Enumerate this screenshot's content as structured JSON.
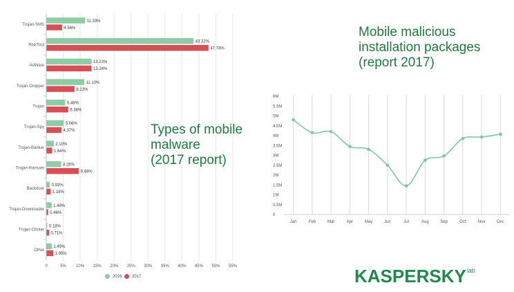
{
  "chart_data": [
    {
      "type": "bar",
      "orientation": "horizontal",
      "title": "",
      "categories": [
        "Trojan-SMS",
        "RiskTool",
        "AdWare",
        "Trojan-Dropper",
        "Trojan",
        "Trojan-Spy",
        "Trojan-Banker",
        "Trojan-Ransom",
        "Backdoor",
        "Trojan-Downloader",
        "Trojan-Clicker",
        "Other"
      ],
      "series": [
        {
          "name": "2016",
          "color": "#8fcca5",
          "values": [
            11.33,
            43.32,
            13.23,
            11.1,
            5.48,
            5.06,
            2.1,
            4.26,
            0.93,
            1.48,
            0.18,
            1.49
          ],
          "labels": [
            "11.33%",
            "43.32%",
            "13.23%",
            "11.10%",
            "5.48%",
            "5.06%",
            "2.10%",
            "4.26%",
            "0.93%",
            "1.48%",
            "0.18%",
            "1.49%"
          ]
        },
        {
          "name": "2017",
          "color": "#d64f55",
          "values": [
            4.56,
            47.74,
            13.24,
            8.23,
            6.38,
            4.37,
            1.64,
            9.48,
            1.18,
            0.46,
            0.71,
            1.95
          ],
          "labels": [
            "4.56%",
            "47.74%",
            "13.24%",
            "8.23%",
            "6.38%",
            "4.37%",
            "1.64%",
            "9.48%",
            "1.18%",
            "0.46%",
            "0.71%",
            "1.95%"
          ]
        }
      ],
      "xlim": [
        0,
        55
      ],
      "xticks": [
        "0",
        "5%",
        "10%",
        "15%",
        "20%",
        "25%",
        "30%",
        "35%",
        "40%",
        "45%",
        "50%",
        "55%"
      ],
      "grid": true,
      "legend": "bottom"
    },
    {
      "type": "line",
      "title": "",
      "x": [
        "Jan",
        "Feb",
        "Mar",
        "Apr",
        "May",
        "Jun",
        "Jul",
        "Aug",
        "Sep",
        "Oct",
        "Nov",
        "Dec"
      ],
      "values": [
        4.8,
        4.15,
        4.2,
        3.45,
        3.3,
        2.5,
        1.45,
        2.75,
        2.97,
        3.85,
        3.93,
        4.07
      ],
      "unit": "M",
      "color": "#7fc8a3",
      "ylim": [
        0,
        6
      ],
      "yticks": [
        "0",
        "0.5M",
        "1M",
        "1.5M",
        "2M",
        "2.5M",
        "3M",
        "3.5M",
        "4M",
        "4.5M",
        "5M",
        "5.5M",
        "6M"
      ],
      "grid": true
    }
  ],
  "headings": {
    "bar_heading": "Types of mobile\nmalware\n(2017 report)",
    "line_heading": "Mobile malicious\ninstallation packages\n(report 2017)"
  },
  "legend": {
    "label_2016": "2016",
    "label_2017": "2017",
    "color_2016": "#8fcca5",
    "color_2017": "#d64f55"
  },
  "logo": {
    "text": "KASPERSKY",
    "suffix": "lab",
    "color": "#1f8a4c"
  }
}
